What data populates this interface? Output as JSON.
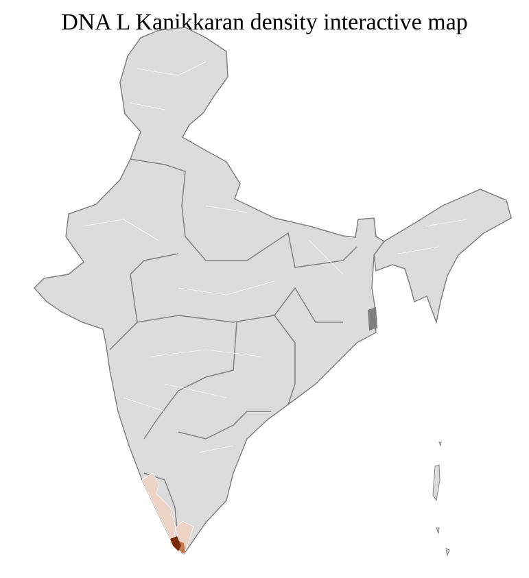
{
  "title": "DNA L Kanikkaran density interactive map",
  "map": {
    "region": "India districts",
    "colors": {
      "base_fill": "#dcdcdc",
      "district_border": "#ffffff",
      "state_border": "#808080",
      "low_density": "#edd3c6",
      "medium_density": "#c8764a",
      "high_density": "#7a2a08"
    },
    "highlighted_regions": [
      {
        "name": "Kerala coast districts",
        "level": "low"
      },
      {
        "name": "southern Tamil Nadu districts",
        "level": "low"
      },
      {
        "name": "Kanyakumari",
        "level": "medium"
      },
      {
        "name": "Thiruvananthapuram",
        "level": "high"
      }
    ]
  }
}
